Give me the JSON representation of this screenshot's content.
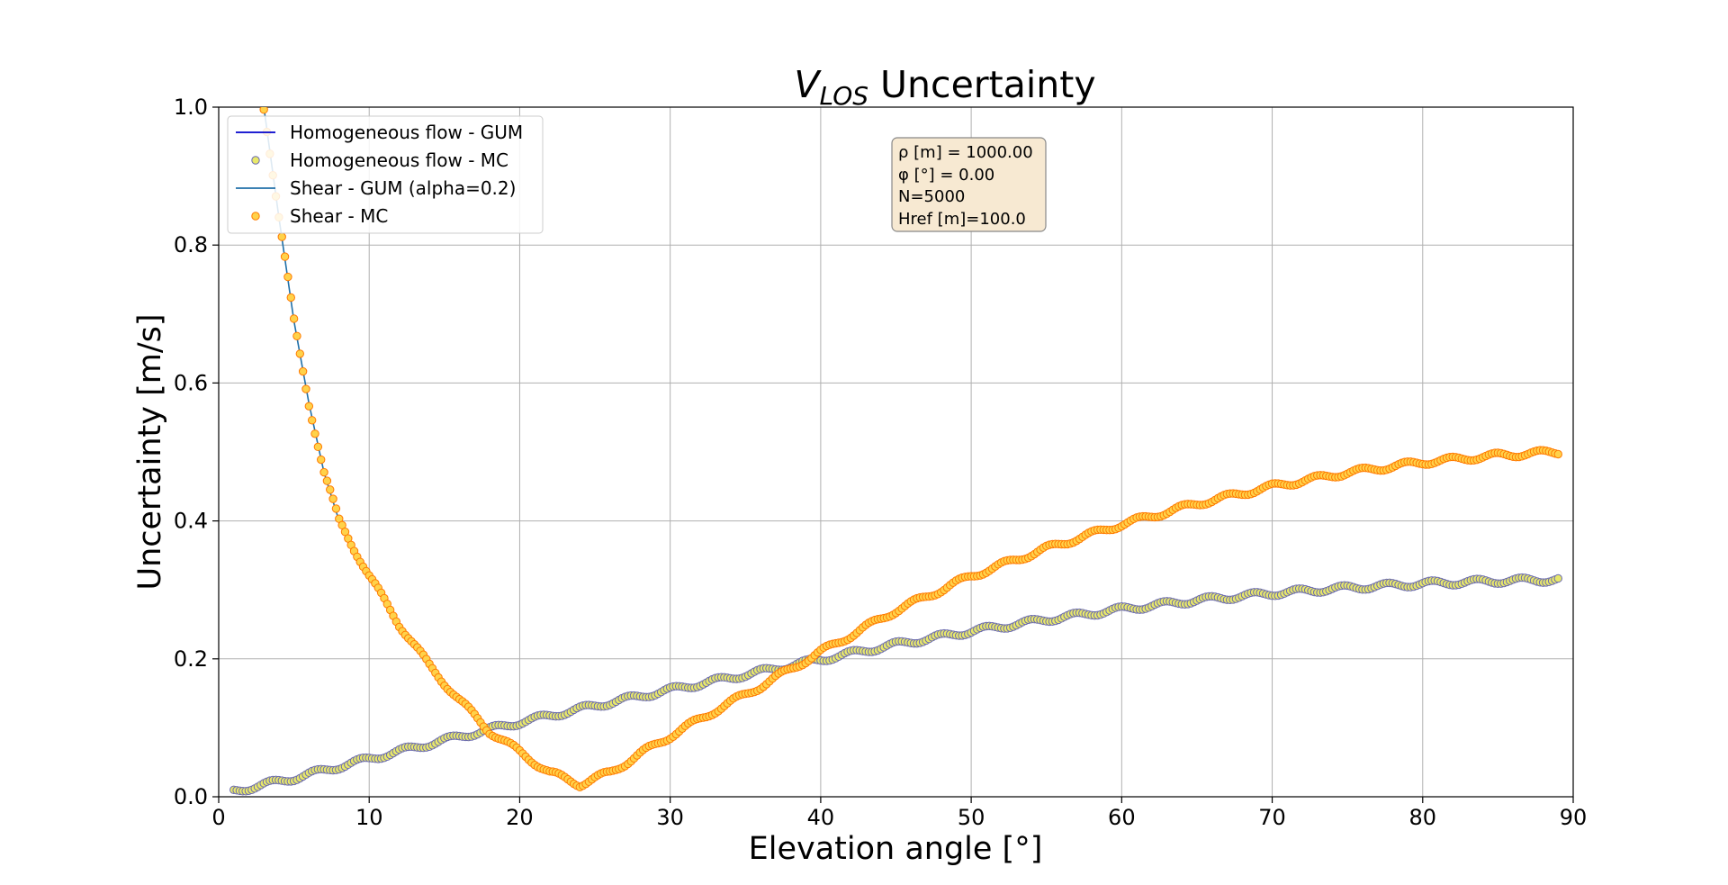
{
  "chart_data": {
    "type": "scatter",
    "title_main": "V",
    "title_sub": "LOS",
    "title_rest": " Uncertainty",
    "xlabel": "Elevation angle [°]",
    "ylabel": "Uncertainty [m/s]",
    "xlim": [
      0,
      90
    ],
    "ylim": [
      0,
      1.0
    ],
    "xticks": [
      "0",
      "10",
      "20",
      "30",
      "40",
      "50",
      "60",
      "70",
      "80",
      "90"
    ],
    "yticks": [
      "0.0",
      "0.2",
      "0.4",
      "0.6",
      "0.8",
      "1.0"
    ],
    "grid": true,
    "legend_placement": "upper-left",
    "legend": [
      {
        "label": "Homogeneous flow - GUM",
        "kind": "line",
        "color": "#0000cc"
      },
      {
        "label": "Homogeneous flow - MC",
        "kind": "marker",
        "color": "#e8e86a",
        "edge": "#6a6ab0"
      },
      {
        "label": "Shear - GUM (alpha=0.2)",
        "kind": "line",
        "color": "#1f6fa8"
      },
      {
        "label": "Shear - MC",
        "kind": "marker",
        "color": "#ffd24a",
        "edge": "#ff7a00"
      }
    ],
    "info_box": [
      "ρ [m] = 1000.00",
      "φ [°] = 0.00",
      "N=5000",
      "Href [m]=100.0"
    ],
    "series": [
      {
        "name": "Homogeneous flow - GUM",
        "style": "line",
        "color": "#0000cc",
        "x": [
          1,
          5,
          10,
          15,
          20,
          25,
          30,
          35,
          40,
          45,
          50,
          55,
          60,
          65,
          70,
          75,
          80,
          85,
          89
        ],
        "y": [
          0.008,
          0.027,
          0.055,
          0.082,
          0.108,
          0.132,
          0.155,
          0.177,
          0.199,
          0.221,
          0.24,
          0.257,
          0.272,
          0.285,
          0.295,
          0.303,
          0.309,
          0.313,
          0.315
        ]
      },
      {
        "name": "Homogeneous flow - MC",
        "style": "marker",
        "color": "#e8e86a",
        "edge": "#6a6ab0",
        "x": [
          1,
          5,
          10,
          15,
          20,
          25,
          30,
          35,
          40,
          45,
          50,
          55,
          60,
          65,
          70,
          75,
          80,
          85,
          89
        ],
        "y": [
          0.008,
          0.027,
          0.055,
          0.082,
          0.108,
          0.132,
          0.155,
          0.177,
          0.199,
          0.221,
          0.24,
          0.257,
          0.272,
          0.285,
          0.295,
          0.303,
          0.309,
          0.313,
          0.315
        ]
      },
      {
        "name": "Shear - GUM (alpha=0.2)",
        "style": "line",
        "color": "#1f6fa8",
        "x": [
          3,
          4,
          5,
          6,
          7,
          8,
          10,
          12,
          14,
          16,
          18,
          20,
          22,
          24,
          26,
          28,
          30,
          33,
          36,
          40,
          45,
          50,
          55,
          60,
          65,
          70,
          75,
          80,
          85,
          89
        ],
        "y": [
          1.0,
          0.84,
          0.69,
          0.57,
          0.47,
          0.4,
          0.32,
          0.25,
          0.19,
          0.14,
          0.095,
          0.065,
          0.035,
          0.018,
          0.035,
          0.062,
          0.088,
          0.125,
          0.16,
          0.21,
          0.27,
          0.32,
          0.36,
          0.395,
          0.425,
          0.45,
          0.47,
          0.485,
          0.495,
          0.5
        ]
      },
      {
        "name": "Shear - MC",
        "style": "marker",
        "color": "#ffd24a",
        "edge": "#ff7a00",
        "x": [
          3,
          4,
          5,
          6,
          7,
          8,
          10,
          12,
          14,
          16,
          18,
          20,
          22,
          24,
          26,
          28,
          30,
          33,
          36,
          40,
          45,
          50,
          55,
          60,
          65,
          70,
          75,
          80,
          85,
          89
        ],
        "y": [
          1.0,
          0.84,
          0.69,
          0.57,
          0.47,
          0.4,
          0.32,
          0.25,
          0.19,
          0.14,
          0.095,
          0.065,
          0.035,
          0.018,
          0.035,
          0.062,
          0.088,
          0.125,
          0.16,
          0.21,
          0.27,
          0.32,
          0.36,
          0.395,
          0.425,
          0.45,
          0.47,
          0.485,
          0.495,
          0.5
        ]
      }
    ]
  }
}
